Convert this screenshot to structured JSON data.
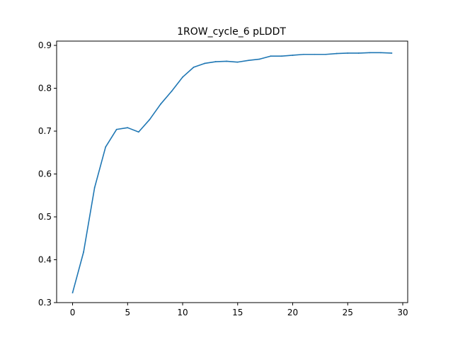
{
  "chart_data": {
    "type": "line",
    "title": "1ROW_cycle_6 pLDDT",
    "xlabel": "",
    "ylabel": "",
    "xlim": [
      -1.45,
      30.45
    ],
    "ylim": [
      0.3,
      0.91
    ],
    "xticks": [
      0,
      5,
      10,
      15,
      20,
      25,
      30
    ],
    "yticks": [
      0.3,
      0.4,
      0.5,
      0.6,
      0.7,
      0.8,
      0.9
    ],
    "grid": false,
    "legend": "none",
    "series": [
      {
        "color": "#1f77b4",
        "x": [
          0,
          1,
          2,
          3,
          4,
          5,
          6,
          7,
          8,
          9,
          10,
          11,
          12,
          13,
          14,
          15,
          16,
          17,
          18,
          19,
          20,
          21,
          22,
          23,
          24,
          25,
          26,
          27,
          28,
          29
        ],
        "y": [
          0.323,
          0.418,
          0.568,
          0.663,
          0.704,
          0.708,
          0.698,
          0.727,
          0.763,
          0.793,
          0.826,
          0.849,
          0.858,
          0.862,
          0.863,
          0.861,
          0.865,
          0.868,
          0.875,
          0.875,
          0.877,
          0.879,
          0.879,
          0.879,
          0.881,
          0.882,
          0.882,
          0.883,
          0.883,
          0.882
        ]
      }
    ]
  }
}
